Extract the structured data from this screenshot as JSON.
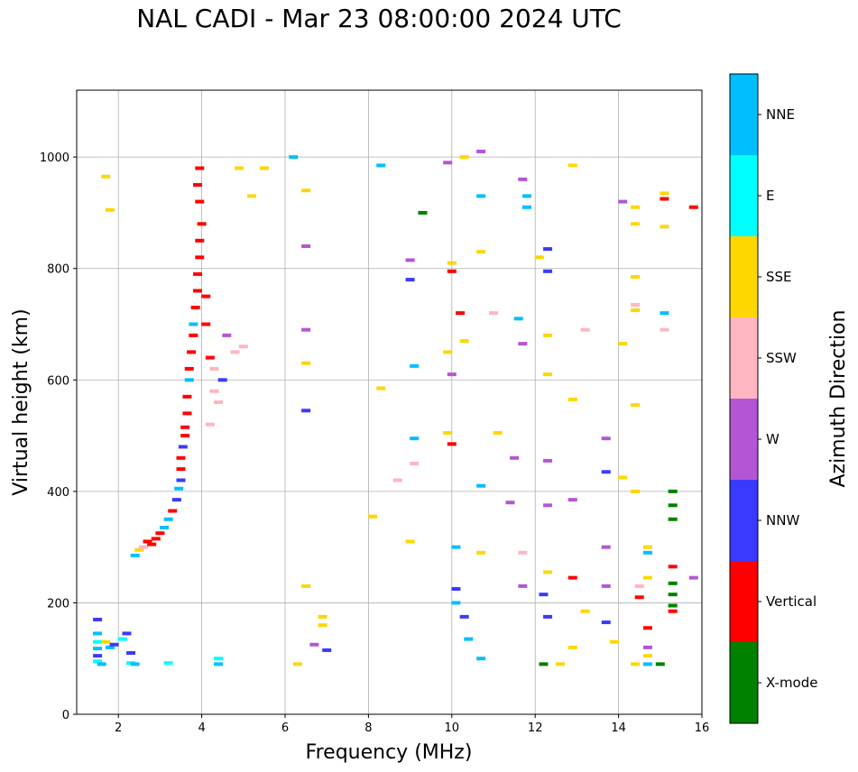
{
  "chart_data": {
    "type": "scatter",
    "title": "NAL CADI - Mar 23 08:00:00 2024 UTC",
    "xlabel": "Frequency (MHz)",
    "ylabel": "Virtual height (km)",
    "xlim": [
      1,
      16
    ],
    "ylim": [
      0,
      1120
    ],
    "xticks": [
      2,
      4,
      6,
      8,
      10,
      12,
      14,
      16
    ],
    "yticks": [
      0,
      200,
      400,
      600,
      800,
      1000
    ],
    "grid": true,
    "colorbar": {
      "label": "Azimuth Direction",
      "position": "right",
      "categories": [
        {
          "name": "X-mode",
          "color": "#008000"
        },
        {
          "name": "Vertical",
          "color": "#ff0000"
        },
        {
          "name": "NNW",
          "color": "#3a3aff"
        },
        {
          "name": "W",
          "color": "#b455d6"
        },
        {
          "name": "SSW",
          "color": "#ffb6c1"
        },
        {
          "name": "SSE",
          "color": "#ffd700"
        },
        {
          "name": "E",
          "color": "#00ffff"
        },
        {
          "name": "NNE",
          "color": "#00bfff"
        }
      ]
    },
    "points": [
      [
        1.5,
        170,
        "NNW"
      ],
      [
        1.5,
        145,
        "NNE"
      ],
      [
        1.5,
        130,
        "E"
      ],
      [
        1.5,
        118,
        "NNE"
      ],
      [
        1.5,
        105,
        "NNW"
      ],
      [
        1.5,
        95,
        "E"
      ],
      [
        1.6,
        90,
        "NNE"
      ],
      [
        1.7,
        130,
        "SSE"
      ],
      [
        1.8,
        120,
        "NNE"
      ],
      [
        1.9,
        125,
        "NNW"
      ],
      [
        2.1,
        135,
        "E"
      ],
      [
        2.2,
        145,
        "NNW"
      ],
      [
        2.3,
        110,
        "NNW"
      ],
      [
        2.3,
        92,
        "E"
      ],
      [
        2.4,
        90,
        "NNE"
      ],
      [
        3.2,
        92,
        "E"
      ],
      [
        2.4,
        285,
        "NNE"
      ],
      [
        2.5,
        295,
        "SSE"
      ],
      [
        2.6,
        300,
        "SSW"
      ],
      [
        2.7,
        310,
        "Vertical"
      ],
      [
        2.8,
        305,
        "Vertical"
      ],
      [
        2.9,
        315,
        "Vertical"
      ],
      [
        3.0,
        325,
        "Vertical"
      ],
      [
        3.1,
        335,
        "NNE"
      ],
      [
        3.2,
        350,
        "NNE"
      ],
      [
        3.3,
        365,
        "Vertical"
      ],
      [
        3.4,
        385,
        "NNW"
      ],
      [
        3.45,
        405,
        "NNE"
      ],
      [
        3.5,
        420,
        "NNW"
      ],
      [
        3.5,
        440,
        "Vertical"
      ],
      [
        3.5,
        460,
        "Vertical"
      ],
      [
        3.55,
        480,
        "NNW"
      ],
      [
        3.6,
        500,
        "Vertical"
      ],
      [
        3.6,
        515,
        "Vertical"
      ],
      [
        3.65,
        540,
        "Vertical"
      ],
      [
        3.65,
        570,
        "Vertical"
      ],
      [
        3.7,
        600,
        "NNE"
      ],
      [
        3.7,
        620,
        "Vertical"
      ],
      [
        3.75,
        650,
        "Vertical"
      ],
      [
        3.8,
        680,
        "Vertical"
      ],
      [
        3.8,
        700,
        "NNE"
      ],
      [
        3.85,
        730,
        "Vertical"
      ],
      [
        3.9,
        760,
        "Vertical"
      ],
      [
        3.9,
        790,
        "Vertical"
      ],
      [
        3.95,
        820,
        "Vertical"
      ],
      [
        3.95,
        850,
        "Vertical"
      ],
      [
        4.0,
        880,
        "Vertical"
      ],
      [
        3.95,
        920,
        "Vertical"
      ],
      [
        3.9,
        950,
        "Vertical"
      ],
      [
        3.95,
        980,
        "Vertical"
      ],
      [
        4.1,
        750,
        "Vertical"
      ],
      [
        4.1,
        700,
        "Vertical"
      ],
      [
        4.2,
        640,
        "Vertical"
      ],
      [
        4.3,
        620,
        "SSW"
      ],
      [
        4.3,
        580,
        "SSW"
      ],
      [
        4.4,
        560,
        "SSW"
      ],
      [
        4.2,
        520,
        "SSW"
      ],
      [
        4.5,
        600,
        "NNW"
      ],
      [
        4.6,
        680,
        "W"
      ],
      [
        4.8,
        650,
        "SSW"
      ],
      [
        5.0,
        660,
        "SSW"
      ],
      [
        4.4,
        100,
        "E"
      ],
      [
        4.4,
        90,
        "NNE"
      ],
      [
        1.7,
        965,
        "SSE"
      ],
      [
        1.8,
        905,
        "SSE"
      ],
      [
        4.9,
        980,
        "SSE"
      ],
      [
        5.2,
        930,
        "SSE"
      ],
      [
        5.5,
        980,
        "SSE"
      ],
      [
        6.2,
        1000,
        "NNE"
      ],
      [
        6.5,
        940,
        "SSE"
      ],
      [
        6.5,
        840,
        "W"
      ],
      [
        6.5,
        690,
        "W"
      ],
      [
        6.5,
        630,
        "SSE"
      ],
      [
        6.5,
        545,
        "NNW"
      ],
      [
        6.5,
        230,
        "SSE"
      ],
      [
        6.7,
        125,
        "W"
      ],
      [
        6.9,
        175,
        "SSE"
      ],
      [
        6.9,
        160,
        "SSE"
      ],
      [
        7.0,
        115,
        "NNW"
      ],
      [
        6.3,
        90,
        "SSE"
      ],
      [
        8.3,
        985,
        "NNE"
      ],
      [
        8.3,
        585,
        "SSE"
      ],
      [
        8.1,
        355,
        "SSE"
      ],
      [
        8.7,
        420,
        "SSW"
      ],
      [
        9.0,
        815,
        "W"
      ],
      [
        9.0,
        780,
        "NNW"
      ],
      [
        9.1,
        625,
        "NNE"
      ],
      [
        9.1,
        495,
        "NNE"
      ],
      [
        9.1,
        450,
        "SSW"
      ],
      [
        9.0,
        310,
        "SSE"
      ],
      [
        9.3,
        900,
        "X-mode"
      ],
      [
        9.9,
        990,
        "W"
      ],
      [
        10.0,
        810,
        "SSE"
      ],
      [
        10.0,
        795,
        "Vertical"
      ],
      [
        10.0,
        610,
        "W"
      ],
      [
        9.9,
        650,
        "SSE"
      ],
      [
        9.9,
        505,
        "SSE"
      ],
      [
        10.0,
        485,
        "Vertical"
      ],
      [
        10.1,
        300,
        "NNE"
      ],
      [
        10.1,
        225,
        "NNW"
      ],
      [
        10.1,
        200,
        "NNE"
      ],
      [
        10.3,
        175,
        "NNW"
      ],
      [
        10.3,
        1000,
        "SSE"
      ],
      [
        10.2,
        720,
        "Vertical"
      ],
      [
        10.3,
        670,
        "SSE"
      ],
      [
        10.4,
        135,
        "NNE"
      ],
      [
        10.7,
        1010,
        "W"
      ],
      [
        10.7,
        930,
        "NNE"
      ],
      [
        10.7,
        830,
        "SSE"
      ],
      [
        10.7,
        410,
        "NNE"
      ],
      [
        10.7,
        290,
        "SSE"
      ],
      [
        10.7,
        100,
        "NNE"
      ],
      [
        11.0,
        720,
        "SSW"
      ],
      [
        11.1,
        505,
        "SSE"
      ],
      [
        11.4,
        380,
        "W"
      ],
      [
        11.5,
        460,
        "W"
      ],
      [
        11.6,
        710,
        "NNE"
      ],
      [
        11.7,
        960,
        "W"
      ],
      [
        11.7,
        665,
        "W"
      ],
      [
        11.7,
        290,
        "SSW"
      ],
      [
        11.7,
        230,
        "W"
      ],
      [
        11.8,
        930,
        "NNE"
      ],
      [
        11.8,
        910,
        "NNE"
      ],
      [
        12.1,
        820,
        "SSE"
      ],
      [
        12.2,
        215,
        "NNW"
      ],
      [
        12.3,
        835,
        "NNW"
      ],
      [
        12.3,
        795,
        "NNW"
      ],
      [
        12.3,
        680,
        "SSE"
      ],
      [
        12.3,
        610,
        "SSE"
      ],
      [
        12.3,
        455,
        "W"
      ],
      [
        12.3,
        375,
        "W"
      ],
      [
        12.3,
        255,
        "SSE"
      ],
      [
        12.3,
        175,
        "NNW"
      ],
      [
        12.2,
        90,
        "X-mode"
      ],
      [
        12.6,
        90,
        "SSE"
      ],
      [
        12.9,
        985,
        "SSE"
      ],
      [
        12.9,
        565,
        "SSE"
      ],
      [
        12.9,
        385,
        "W"
      ],
      [
        12.9,
        245,
        "Vertical"
      ],
      [
        12.9,
        120,
        "SSE"
      ],
      [
        13.2,
        690,
        "SSW"
      ],
      [
        13.2,
        185,
        "SSE"
      ],
      [
        13.7,
        495,
        "W"
      ],
      [
        13.7,
        435,
        "NNW"
      ],
      [
        13.7,
        300,
        "W"
      ],
      [
        13.7,
        230,
        "W"
      ],
      [
        13.7,
        165,
        "NNW"
      ],
      [
        13.9,
        130,
        "SSE"
      ],
      [
        14.1,
        920,
        "W"
      ],
      [
        14.1,
        665,
        "SSE"
      ],
      [
        14.1,
        425,
        "SSE"
      ],
      [
        14.4,
        910,
        "SSE"
      ],
      [
        14.4,
        880,
        "SSE"
      ],
      [
        14.4,
        785,
        "SSE"
      ],
      [
        14.4,
        735,
        "SSW"
      ],
      [
        14.4,
        725,
        "SSE"
      ],
      [
        14.4,
        555,
        "SSE"
      ],
      [
        14.4,
        400,
        "SSE"
      ],
      [
        14.5,
        230,
        "SSW"
      ],
      [
        14.5,
        210,
        "Vertical"
      ],
      [
        14.4,
        90,
        "SSE"
      ],
      [
        14.7,
        300,
        "SSE"
      ],
      [
        14.7,
        290,
        "NNE"
      ],
      [
        14.7,
        245,
        "SSE"
      ],
      [
        14.7,
        155,
        "Vertical"
      ],
      [
        14.7,
        120,
        "W"
      ],
      [
        14.7,
        105,
        "SSE"
      ],
      [
        14.7,
        90,
        "NNE"
      ],
      [
        15.0,
        90,
        "X-mode"
      ],
      [
        15.1,
        935,
        "SSE"
      ],
      [
        15.1,
        925,
        "Vertical"
      ],
      [
        15.1,
        875,
        "SSE"
      ],
      [
        15.1,
        720,
        "NNE"
      ],
      [
        15.1,
        690,
        "SSW"
      ],
      [
        15.3,
        400,
        "X-mode"
      ],
      [
        15.3,
        375,
        "X-mode"
      ],
      [
        15.3,
        350,
        "X-mode"
      ],
      [
        15.3,
        265,
        "Vertical"
      ],
      [
        15.3,
        235,
        "X-mode"
      ],
      [
        15.3,
        215,
        "X-mode"
      ],
      [
        15.3,
        195,
        "X-mode"
      ],
      [
        15.3,
        185,
        "Vertical"
      ],
      [
        15.8,
        910,
        "Vertical"
      ],
      [
        15.8,
        245,
        "W"
      ]
    ]
  }
}
